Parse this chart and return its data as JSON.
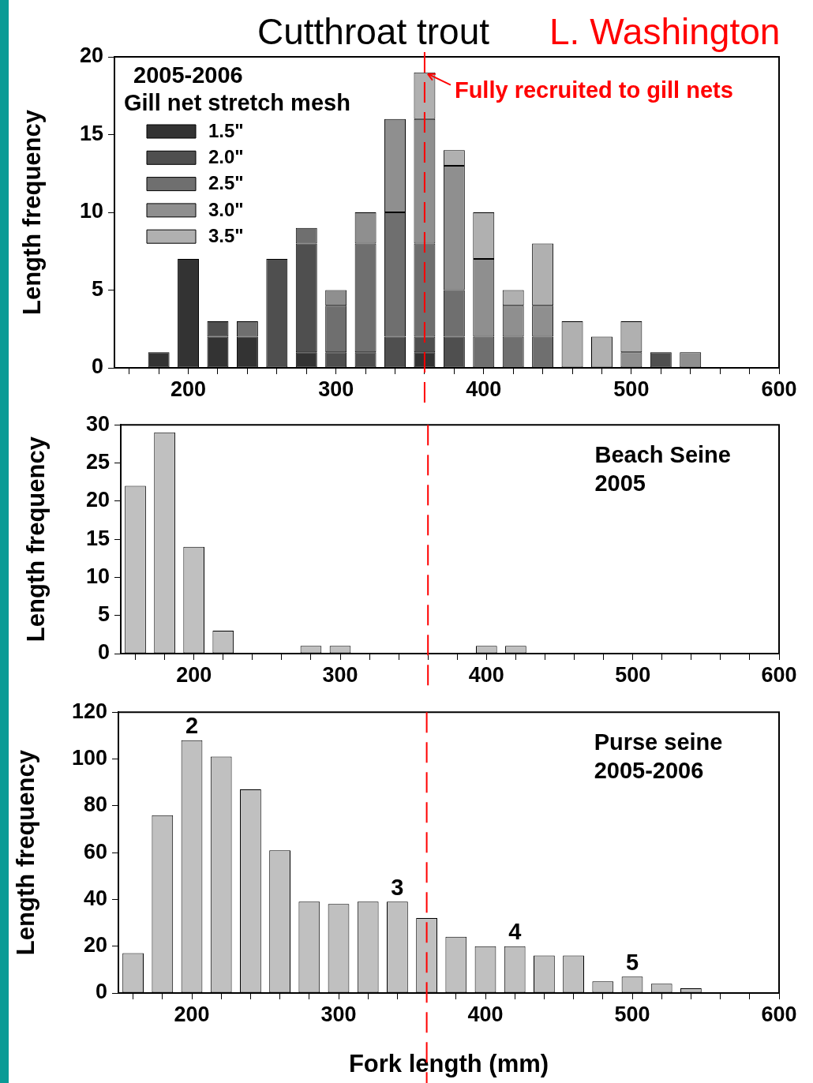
{
  "chart_data": [
    {
      "type": "bar",
      "title": "Cutthroat trout",
      "subtitle": "L. Washington",
      "ylabel": "Length frequency",
      "legend_title": "Gill net stretch mesh",
      "stacked": true,
      "legend": "top left",
      "grid": false,
      "x": [
        180,
        200,
        220,
        240,
        260,
        280,
        300,
        320,
        340,
        360,
        380,
        400,
        420,
        440,
        460,
        480,
        500,
        520,
        540
      ],
      "series": [
        {
          "name": "1.5\"",
          "color": "#333333",
          "values": [
            1,
            7,
            2,
            2,
            null,
            1,
            null,
            null,
            null,
            1,
            null,
            null,
            null,
            null,
            null,
            null,
            null,
            null,
            null
          ]
        },
        {
          "name": "2.0\"",
          "color": "#4f4f4f",
          "values": [
            null,
            null,
            1,
            null,
            7,
            7,
            1,
            1,
            2,
            1,
            2,
            null,
            null,
            null,
            null,
            null,
            null,
            1,
            null
          ]
        },
        {
          "name": "2.5\"",
          "color": "#6f6f6f",
          "values": [
            null,
            null,
            null,
            1,
            null,
            1,
            3,
            7,
            8,
            6,
            3,
            2,
            2,
            2,
            null,
            null,
            null,
            null,
            null
          ]
        },
        {
          "name": "3.0\"",
          "color": "#8f8f8f",
          "values": [
            null,
            null,
            null,
            null,
            null,
            null,
            1,
            2,
            6,
            8,
            8,
            5,
            2,
            2,
            null,
            null,
            1,
            null,
            1
          ]
        },
        {
          "name": "3.5\"",
          "color": "#b0b0b0",
          "values": [
            null,
            null,
            null,
            null,
            null,
            null,
            null,
            null,
            null,
            3,
            1,
            3,
            1,
            4,
            3,
            2,
            2,
            null,
            null
          ]
        }
      ],
      "xlim": [
        150,
        600
      ],
      "xticks": [
        {
          "value": 160,
          "label": null
        },
        {
          "value": 180,
          "label": null
        },
        200,
        {
          "value": 220,
          "label": null
        },
        {
          "value": 240,
          "label": null
        },
        {
          "value": 260,
          "label": null
        },
        {
          "value": 280,
          "label": null
        },
        300,
        {
          "value": 320,
          "label": null
        },
        {
          "value": 340,
          "label": null
        },
        {
          "value": 360,
          "label": null
        },
        {
          "value": 380,
          "label": null
        },
        400,
        {
          "value": 420,
          "label": null
        },
        {
          "value": 440,
          "label": null
        },
        {
          "value": 460,
          "label": null
        },
        {
          "value": 480,
          "label": null
        },
        500,
        {
          "value": 520,
          "label": null
        },
        {
          "value": 540,
          "label": null
        },
        {
          "value": 560,
          "label": null
        },
        {
          "value": 580,
          "label": null
        },
        600
      ],
      "ylim": [
        0,
        20
      ],
      "yticks": [
        0,
        5,
        10,
        15,
        20
      ],
      "ref_lines": [
        {
          "axis": "x",
          "value": 360,
          "color": "#ff0000",
          "line_style": "dashed"
        }
      ],
      "annotations": [
        "2005-2006",
        {
          "text": "Fully recruited to gill nets",
          "x": 360,
          "y": 19
        }
      ]
    },
    {
      "type": "bar",
      "ylabel": "Length frequency",
      "grid": false,
      "x": [
        160,
        180,
        200,
        220,
        280,
        300,
        400,
        420
      ],
      "series": [
        {
          "color": "#c0c0c0",
          "values": [
            22,
            29,
            14,
            3,
            1,
            1,
            1,
            1
          ]
        }
      ],
      "xlim": [
        150,
        600
      ],
      "xticks": [
        {
          "value": 160,
          "label": null
        },
        {
          "value": 180,
          "label": null
        },
        200,
        {
          "value": 220,
          "label": null
        },
        {
          "value": 240,
          "label": null
        },
        {
          "value": 260,
          "label": null
        },
        {
          "value": 280,
          "label": null
        },
        300,
        {
          "value": 320,
          "label": null
        },
        {
          "value": 340,
          "label": null
        },
        {
          "value": 360,
          "label": null
        },
        {
          "value": 380,
          "label": null
        },
        400,
        {
          "value": 420,
          "label": null
        },
        {
          "value": 440,
          "label": null
        },
        {
          "value": 460,
          "label": null
        },
        {
          "value": 480,
          "label": null
        },
        500,
        {
          "value": 520,
          "label": null
        },
        {
          "value": 540,
          "label": null
        },
        {
          "value": 560,
          "label": null
        },
        {
          "value": 580,
          "label": null
        },
        600
      ],
      "ylim": [
        0,
        30
      ],
      "yticks": [
        0,
        5,
        10,
        15,
        20,
        25,
        30
      ],
      "ref_lines": [
        {
          "axis": "x",
          "value": 360,
          "color": "#ff0000",
          "line_style": "dashed"
        }
      ],
      "annotations": [
        "Beach Seine\n2005"
      ]
    },
    {
      "type": "bar",
      "ylabel": "Length frequency",
      "xlabel": "Fork length (mm)",
      "grid": false,
      "x": [
        160,
        180,
        200,
        220,
        240,
        260,
        280,
        300,
        320,
        340,
        360,
        380,
        400,
        420,
        440,
        460,
        480,
        500,
        520,
        540
      ],
      "series": [
        {
          "color": "#c0c0c0",
          "values": [
            17,
            76,
            108,
            101,
            87,
            61,
            39,
            38,
            39,
            39,
            32,
            24,
            20,
            20,
            16,
            16,
            5,
            7,
            4,
            2
          ]
        }
      ],
      "xlim": [
        150,
        600
      ],
      "xticks": [
        {
          "value": 160,
          "label": null
        },
        {
          "value": 180,
          "label": null
        },
        200,
        {
          "value": 220,
          "label": null
        },
        {
          "value": 240,
          "label": null
        },
        {
          "value": 260,
          "label": null
        },
        {
          "value": 280,
          "label": null
        },
        300,
        {
          "value": 320,
          "label": null
        },
        {
          "value": 340,
          "label": null
        },
        {
          "value": 360,
          "label": null
        },
        {
          "value": 380,
          "label": null
        },
        400,
        {
          "value": 420,
          "label": null
        },
        {
          "value": 440,
          "label": null
        },
        {
          "value": 460,
          "label": null
        },
        {
          "value": 480,
          "label": null
        },
        500,
        {
          "value": 520,
          "label": null
        },
        {
          "value": 540,
          "label": null
        },
        {
          "value": 560,
          "label": null
        },
        {
          "value": 580,
          "label": null
        },
        600
      ],
      "ylim": [
        0,
        120
      ],
      "yticks": [
        0,
        20,
        40,
        60,
        80,
        100,
        120
      ],
      "ref_lines": [
        {
          "axis": "x",
          "value": 360,
          "color": "#ff0000",
          "line_style": "dashed"
        }
      ],
      "annotations": [
        "Purse seine\n2005-2006",
        {
          "text": "2",
          "x": 200,
          "y": 108
        },
        {
          "text": "3",
          "x": 340,
          "y": 39
        },
        {
          "text": "4",
          "x": 420,
          "y": 20
        },
        {
          "text": "5",
          "x": 500,
          "y": 7
        }
      ]
    }
  ]
}
